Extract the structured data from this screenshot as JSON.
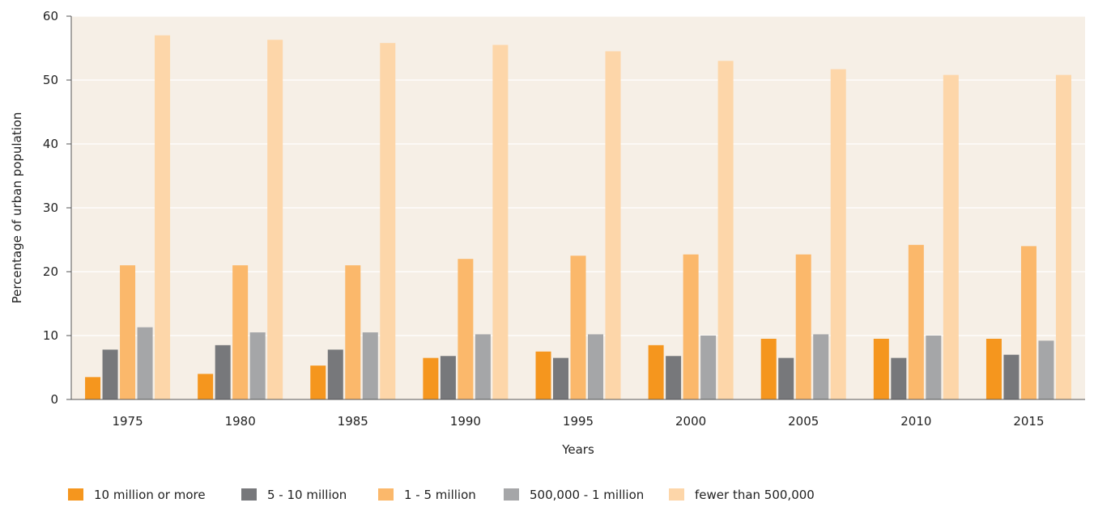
{
  "chart_data": {
    "type": "bar",
    "title": "",
    "xlabel": "Years",
    "ylabel": "Percentage of urban population",
    "ylim": [
      0,
      60
    ],
    "yticks": [
      0,
      10,
      20,
      30,
      40,
      50,
      60
    ],
    "grid": true,
    "legend_position": "bottom",
    "background_color": "#f6efe6",
    "categories": [
      "1975",
      "1980",
      "1985",
      "1990",
      "1995",
      "2000",
      "2005",
      "2010",
      "2015"
    ],
    "series": [
      {
        "name": "10 million or more",
        "color": "#f5961e",
        "values": [
          3.5,
          4.0,
          5.3,
          6.5,
          7.5,
          8.5,
          9.5,
          9.5,
          9.5
        ]
      },
      {
        "name": "5 - 10 million",
        "color": "#77787b",
        "values": [
          7.8,
          8.5,
          7.8,
          6.8,
          6.5,
          6.8,
          6.5,
          6.5,
          7.0
        ]
      },
      {
        "name": "1 - 5 million",
        "color": "#fbb86b",
        "values": [
          21.0,
          21.0,
          21.0,
          22.0,
          22.5,
          22.7,
          22.7,
          24.2,
          24.0
        ]
      },
      {
        "name": "500,000 - 1 million",
        "color": "#a5a6a8",
        "values": [
          11.3,
          10.5,
          10.5,
          10.2,
          10.2,
          10.0,
          10.2,
          10.0,
          9.2
        ]
      },
      {
        "name": "fewer than 500,000",
        "color": "#fdd6a9",
        "values": [
          57.0,
          56.3,
          55.8,
          55.5,
          54.5,
          53.0,
          51.7,
          50.8,
          50.8
        ]
      }
    ]
  }
}
